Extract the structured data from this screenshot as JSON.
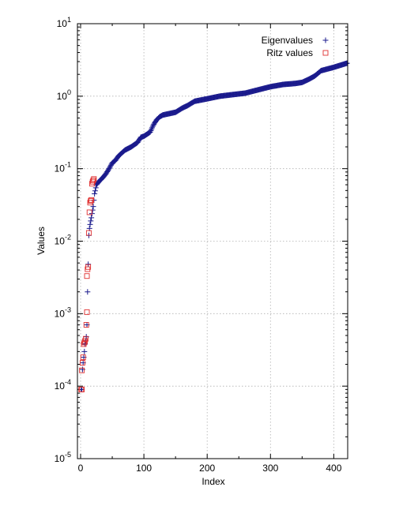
{
  "chart_data": {
    "type": "scatter",
    "title": "",
    "xlabel": "Index",
    "ylabel": "Values",
    "xlim": [
      -5,
      422
    ],
    "ylim": [
      1e-05,
      10
    ],
    "y_scale": "log",
    "x_ticks": [
      0,
      100,
      200,
      300,
      400
    ],
    "x_tick_labels": [
      "0",
      "100",
      "200",
      "300",
      "400"
    ],
    "y_ticks": [
      1e-05,
      0.0001,
      0.001,
      0.01,
      0.1,
      1,
      10
    ],
    "y_tick_labels": [
      {
        "base": "10",
        "exp": "-5"
      },
      {
        "base": "10",
        "exp": "-4"
      },
      {
        "base": "10",
        "exp": "-3"
      },
      {
        "base": "10",
        "exp": "-2"
      },
      {
        "base": "10",
        "exp": "-1"
      },
      {
        "base": "10",
        "exp": "0"
      },
      {
        "base": "10",
        "exp": "1"
      }
    ],
    "grid": true,
    "legend_position": "top-right",
    "colors": {
      "eigen": "#1a1a8c",
      "ritz": "#e03030",
      "grid": "#b0b0b0"
    },
    "series": [
      {
        "name": "Eigenvalues",
        "marker": "plus",
        "anchors": {
          "x": [
            1,
            2,
            3,
            4,
            5,
            6,
            7,
            8,
            9,
            10,
            11,
            12,
            13,
            14,
            15,
            16,
            17,
            18,
            20,
            22,
            25,
            30,
            35,
            40,
            45,
            50,
            55,
            60,
            70,
            80,
            90,
            95,
            100,
            110,
            115,
            120,
            125,
            130,
            150,
            160,
            170,
            180,
            200,
            220,
            240,
            260,
            280,
            300,
            320,
            340,
            350,
            360,
            370,
            380,
            400,
            421
          ],
          "y": [
            9e-05,
            9e-05,
            0.00017,
            0.00021,
            0.00025,
            0.0003,
            0.00038,
            0.00042,
            0.00048,
            0.0007,
            0.002,
            0.0048,
            0.012,
            0.015,
            0.017,
            0.019,
            0.021,
            0.024,
            0.03,
            0.045,
            0.06,
            0.068,
            0.075,
            0.085,
            0.1,
            0.12,
            0.13,
            0.15,
            0.18,
            0.2,
            0.23,
            0.27,
            0.28,
            0.32,
            0.4,
            0.47,
            0.52,
            0.55,
            0.6,
            0.68,
            0.75,
            0.85,
            0.92,
            1.0,
            1.05,
            1.1,
            1.22,
            1.35,
            1.45,
            1.5,
            1.55,
            1.7,
            1.9,
            2.25,
            2.5,
            2.85
          ]
        }
      },
      {
        "name": "Ritz values",
        "marker": "square",
        "x": [
          1,
          2,
          2,
          3,
          4,
          5,
          6,
          7,
          8,
          9,
          10,
          10,
          11,
          12,
          13,
          14,
          15,
          16,
          17,
          18,
          19,
          20,
          21
        ],
        "y": [
          9e-05,
          9e-05,
          0.000165,
          0.00021,
          0.00025,
          0.00038,
          0.0004,
          0.00042,
          0.00045,
          0.0007,
          0.00105,
          0.0033,
          0.0041,
          0.0044,
          0.013,
          0.025,
          0.034,
          0.036,
          0.037,
          0.062,
          0.066,
          0.069,
          0.072
        ]
      }
    ]
  }
}
